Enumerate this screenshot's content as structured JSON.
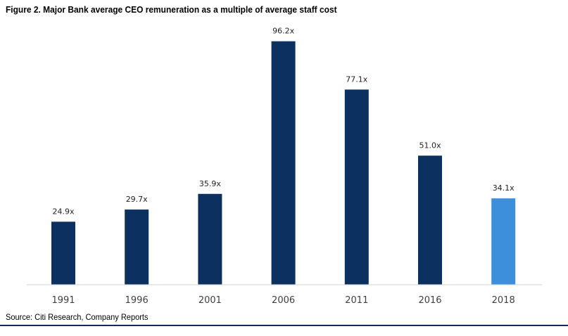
{
  "chart_data": {
    "type": "bar",
    "title": "Figure 2. Major Bank average CEO remuneration as a multiple of average staff cost",
    "categories": [
      "1991",
      "1996",
      "2001",
      "2006",
      "2011",
      "2016",
      "2018"
    ],
    "values": [
      24.9,
      29.7,
      35.9,
      96.2,
      77.1,
      51.0,
      34.1
    ],
    "data_labels": [
      "24.9x",
      "29.7x",
      "35.9x",
      "96.2x",
      "77.1x",
      "51.0x",
      "34.1x"
    ],
    "bar_colors": [
      "#0c3160",
      "#0c3160",
      "#0c3160",
      "#0c3160",
      "#0c3160",
      "#0c3160",
      "#3d8fdb"
    ],
    "ylim": [
      0,
      100
    ],
    "grid": false,
    "legend": "none"
  },
  "source": "Source: Citi Research, Company Reports"
}
